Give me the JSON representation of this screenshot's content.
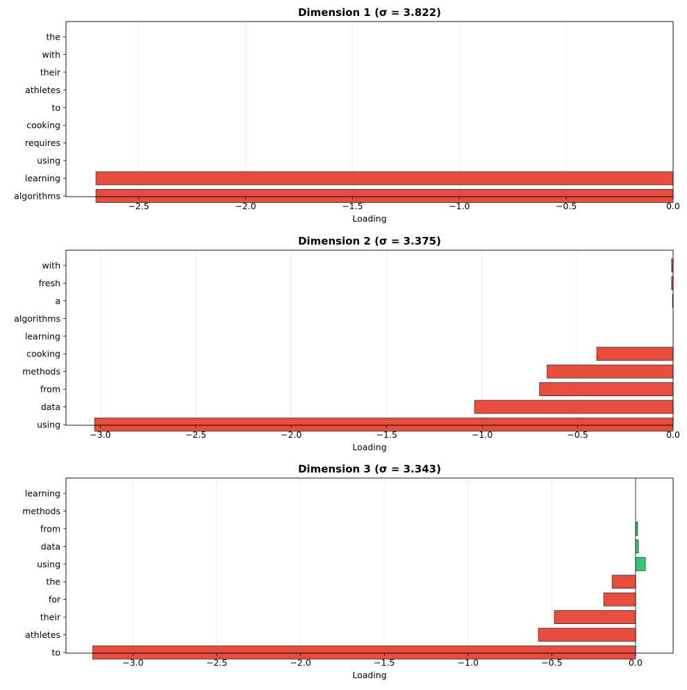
{
  "colors": {
    "negative": "#e74c3c",
    "positive": "#2ecc71",
    "edge": "#333333",
    "grid": "#e6e6e6"
  },
  "chart_data": [
    {
      "type": "bar",
      "orientation": "horizontal",
      "title": "Dimension 1 (σ = 3.822)",
      "xlabel": "Loading",
      "categories": [
        "the",
        "with",
        "their",
        "athletes",
        "to",
        "cooking",
        "requires",
        "using",
        "learning",
        "algorithms"
      ],
      "values": [
        0,
        0,
        0,
        0,
        0,
        0,
        0,
        0,
        -2.7,
        -2.7
      ],
      "xlim": [
        -2.84,
        0
      ],
      "xticks": [
        -2.5,
        -2.0,
        -1.5,
        -1.0,
        -0.5,
        0.0
      ],
      "xtick_labels": [
        "−2.5",
        "−2.0",
        "−1.5",
        "−1.0",
        "−0.5",
        "0.0"
      ],
      "grid": "x",
      "zero_line": false
    },
    {
      "type": "bar",
      "orientation": "horizontal",
      "title": "Dimension 2 (σ = 3.375)",
      "xlabel": "Loading",
      "categories": [
        "with",
        "fresh",
        "a",
        "algorithms",
        "learning",
        "cooking",
        "methods",
        "from",
        "data",
        "using"
      ],
      "values": [
        -0.008,
        -0.008,
        -0.003,
        0,
        0,
        -0.4,
        -0.66,
        -0.7,
        -1.04,
        -3.03
      ],
      "xlim": [
        -3.18,
        0
      ],
      "xticks": [
        -3.0,
        -2.5,
        -2.0,
        -1.5,
        -1.0,
        -0.5,
        0.0
      ],
      "xtick_labels": [
        "−3.0",
        "−2.5",
        "−2.0",
        "−1.5",
        "−1.0",
        "−0.5",
        "0.0"
      ],
      "grid": "x",
      "zero_line": false
    },
    {
      "type": "bar",
      "orientation": "horizontal",
      "title": "Dimension 3 (σ = 3.343)",
      "xlabel": "Loading",
      "categories": [
        "learning",
        "methods",
        "from",
        "data",
        "using",
        "the",
        "for",
        "their",
        "athletes",
        "to"
      ],
      "values": [
        0,
        0,
        0.012,
        0.017,
        0.058,
        -0.14,
        -0.19,
        -0.485,
        -0.58,
        -3.24
      ],
      "xlim": [
        -3.4,
        0.224
      ],
      "xticks": [
        -3.0,
        -2.5,
        -2.0,
        -1.5,
        -1.0,
        -0.5,
        0.0
      ],
      "xtick_labels": [
        "−3.0",
        "−2.5",
        "−2.0",
        "−1.5",
        "−1.0",
        "−0.5",
        "0.0"
      ],
      "grid": "x",
      "zero_line": true
    }
  ]
}
